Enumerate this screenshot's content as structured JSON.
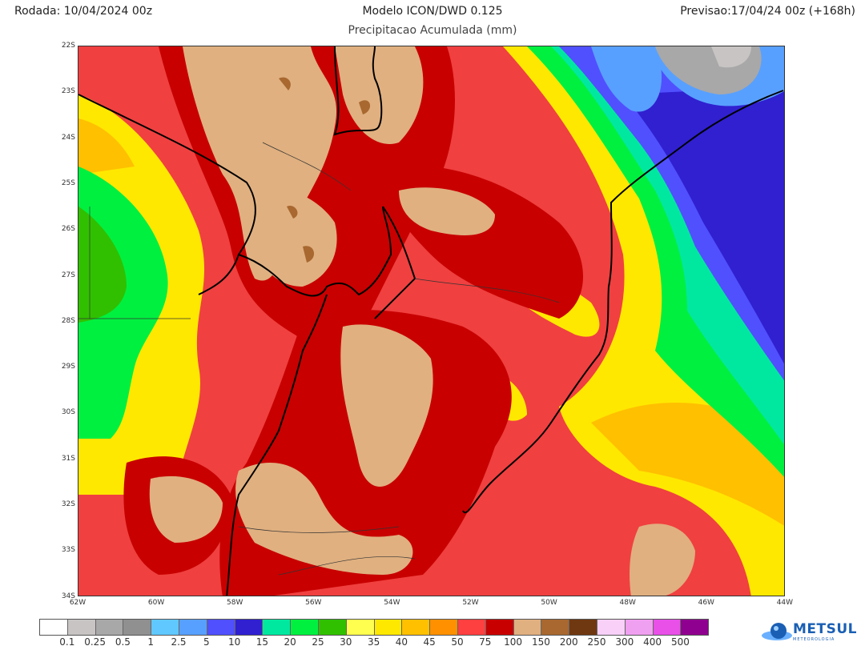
{
  "header": {
    "run": "Rodada: 10/04/2024 00z",
    "model": "Modelo ICON/DWD 0.125",
    "forecast": "Previsao:17/04/24 00z (+168h)",
    "subtitle": "Precipitacao Acumulada (mm)"
  },
  "axes": {
    "lat": [
      "22S",
      "23S",
      "24S",
      "25S",
      "26S",
      "27S",
      "28S",
      "29S",
      "30S",
      "31S",
      "32S",
      "33S",
      "34S"
    ],
    "lon": [
      "62W",
      "60W",
      "58W",
      "56W",
      "54W",
      "52W",
      "50W",
      "48W",
      "46W",
      "44W"
    ]
  },
  "legend": {
    "colors": [
      "#ffffff",
      "#c8c4c4",
      "#a8a8a8",
      "#909090",
      "#60c8ff",
      "#58a0ff",
      "#5050ff",
      "#3020d0",
      "#00e8a0",
      "#00f040",
      "#30c000",
      "#ffff50",
      "#ffe800",
      "#ffc000",
      "#ff9000",
      "#ff4040",
      "#c80000",
      "#e0b080",
      "#a86830",
      "#703810",
      "#f8d0f8",
      "#f0a0f0",
      "#e850e8",
      "#900090"
    ],
    "labels": [
      "0.1",
      "0.25",
      "0.5",
      "1",
      "2.5",
      "5",
      "10",
      "15",
      "20",
      "25",
      "30",
      "35",
      "40",
      "45",
      "50",
      "75",
      "100",
      "150",
      "200",
      "250",
      "300",
      "400",
      "500"
    ]
  },
  "logo": {
    "name": "METSUL",
    "tagline": "METEOROLOGIA"
  }
}
